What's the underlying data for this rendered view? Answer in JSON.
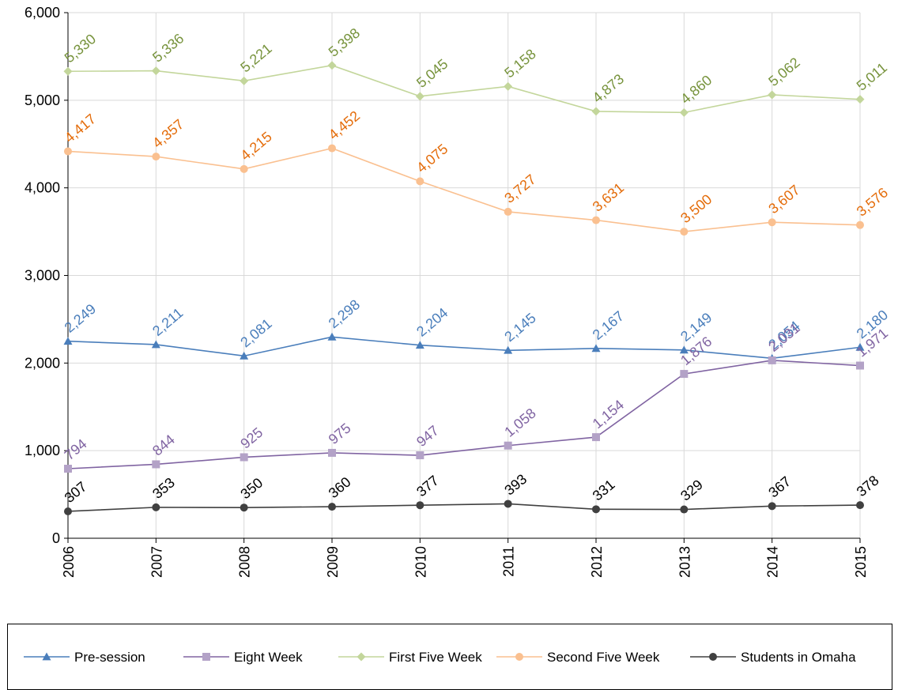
{
  "chart_data": {
    "type": "line",
    "title": "",
    "xlabel": "",
    "ylabel": "",
    "x": [
      "2006",
      "2007",
      "2008",
      "2009",
      "2010",
      "2011",
      "2012",
      "2013",
      "2014",
      "2015"
    ],
    "ylim": [
      0,
      6000
    ],
    "yticks": [
      "0",
      "1,000",
      "2,000",
      "3,000",
      "4,000",
      "5,000",
      "6,000"
    ],
    "grid": true,
    "legend": "bottom",
    "series": [
      {
        "name": "Pre-session",
        "color": "#4a7ebb",
        "label_color": "#4a7ebb",
        "marker": "triangle",
        "values": [
          2249,
          2211,
          2081,
          2298,
          2204,
          2145,
          2167,
          2149,
          2054,
          2180
        ],
        "labels": [
          "2,249",
          "2,211",
          "2,081",
          "2,298",
          "2,204",
          "2,145",
          "2,167",
          "2,149",
          "2,054",
          "2,180"
        ]
      },
      {
        "name": "Eight Week",
        "color": "#8064a2",
        "label_color": "#8064a2",
        "marker": "square",
        "marker_color": "#b3a2c7",
        "values": [
          794,
          844,
          925,
          975,
          947,
          1058,
          1154,
          1876,
          2031,
          1971
        ],
        "labels": [
          "794",
          "844",
          "925",
          "975",
          "947",
          "1,058",
          "1,154",
          "1,876",
          "2,031",
          "1,971"
        ]
      },
      {
        "name": "First Five Week",
        "color": "#c3d69b",
        "label_color": "#77933c",
        "marker": "diamond",
        "values": [
          5330,
          5336,
          5221,
          5398,
          5045,
          5158,
          4873,
          4860,
          5062,
          5011
        ],
        "labels": [
          "5,330",
          "5,336",
          "5,221",
          "5,398",
          "5,045",
          "5,158",
          "4,873",
          "4,860",
          "5,062",
          "5,011"
        ]
      },
      {
        "name": "Second Five Week",
        "color": "#fac090",
        "label_color": "#e46c0a",
        "marker": "circle",
        "values": [
          4417,
          4357,
          4215,
          4452,
          4075,
          3727,
          3631,
          3500,
          3607,
          3576
        ],
        "labels": [
          "4,417",
          "4,357",
          "4,215",
          "4,452",
          "4,075",
          "3,727",
          "3,631",
          "3,500",
          "3,607",
          "3,576"
        ]
      },
      {
        "name": "Students in Omaha",
        "color": "#404040",
        "label_color": "#000000",
        "marker": "circle",
        "values": [
          307,
          353,
          350,
          360,
          377,
          393,
          331,
          329,
          367,
          378
        ],
        "labels": [
          "307",
          "353",
          "350",
          "360",
          "377",
          "393",
          "331",
          "329",
          "367",
          "378"
        ]
      }
    ]
  }
}
